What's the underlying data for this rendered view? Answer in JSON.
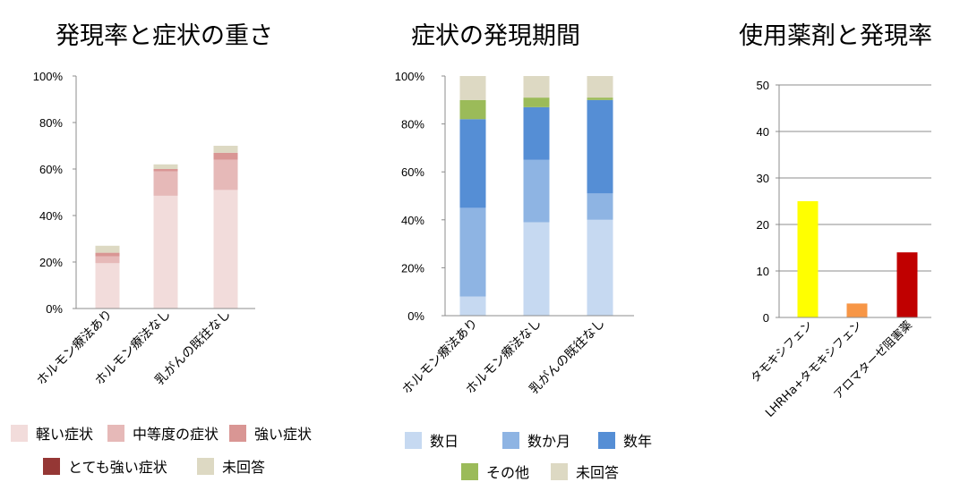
{
  "chart_data": [
    {
      "type": "bar",
      "stacked": true,
      "title": "発現率と症状の重さ",
      "categories": [
        "ホルモン療法あり",
        "ホルモン療法なし",
        "乳がんの既往なし"
      ],
      "ylim": [
        0,
        100
      ],
      "y_ticks": [
        "0%",
        "20%",
        "40%",
        "60%",
        "80%",
        "100%"
      ],
      "grid": false,
      "legend": "bottom",
      "series": [
        {
          "name": "軽い症状",
          "color": "#f2dcdb",
          "values": [
            19.5,
            48.5,
            51
          ]
        },
        {
          "name": "中等度の症状",
          "color": "#e6b9b8",
          "values": [
            3,
            10.5,
            13
          ]
        },
        {
          "name": "強い症状",
          "color": "#d99694",
          "values": [
            1.5,
            1,
            3
          ]
        },
        {
          "name": "とても強い症状",
          "color": "#953735",
          "values": [
            0,
            0,
            0
          ]
        },
        {
          "name": "未回答",
          "color": "#ddd9c3",
          "values": [
            3,
            2,
            3
          ]
        }
      ]
    },
    {
      "type": "bar",
      "stacked": true,
      "title": "症状の発現期間",
      "categories": [
        "ホルモン療法あり",
        "ホルモン療法なし",
        "乳がんの既往なし"
      ],
      "ylim": [
        0,
        100
      ],
      "y_ticks": [
        "0%",
        "20%",
        "40%",
        "60%",
        "80%",
        "100%"
      ],
      "grid": false,
      "legend": "bottom",
      "series": [
        {
          "name": "数日",
          "color": "#c6d9f1",
          "values": [
            8,
            39,
            40
          ]
        },
        {
          "name": "数か月",
          "color": "#8eb4e3",
          "values": [
            37,
            26,
            11
          ]
        },
        {
          "name": "数年",
          "color": "#558ed5",
          "values": [
            37,
            22,
            39
          ]
        },
        {
          "name": "その他",
          "color": "#9bbb59",
          "values": [
            8,
            4,
            1
          ]
        },
        {
          "name": "未回答",
          "color": "#ddd9c3",
          "values": [
            10,
            9,
            9
          ]
        }
      ]
    },
    {
      "type": "bar",
      "title": "使用薬剤と発現率",
      "categories": [
        "タモキシフェン",
        "LHRHa+タモキシフェン",
        "アロマターゼ阻害薬"
      ],
      "values": [
        25,
        3,
        14
      ],
      "colors": [
        "#ffff00",
        "#f79646",
        "#c00000"
      ],
      "ylim": [
        0,
        50
      ],
      "y_ticks": [
        "0",
        "10",
        "20",
        "30",
        "40",
        "50"
      ],
      "grid": true
    }
  ]
}
